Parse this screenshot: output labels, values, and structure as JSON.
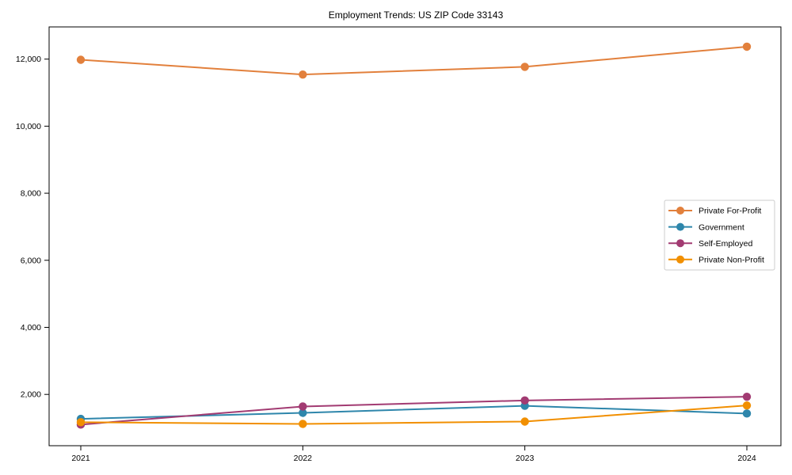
{
  "chart_data": {
    "type": "line",
    "title": "Employment Trends: US ZIP Code 33143",
    "categories": [
      "2021",
      "2022",
      "2023",
      "2024"
    ],
    "series": [
      {
        "name": "Private For-Profit",
        "color": "#E2803C",
        "values": [
          11980,
          11540,
          11770,
          12370
        ]
      },
      {
        "name": "Government",
        "color": "#2E86AB",
        "values": [
          1270,
          1450,
          1660,
          1430
        ]
      },
      {
        "name": "Self-Employed",
        "color": "#A23B72",
        "values": [
          1100,
          1640,
          1820,
          1930
        ]
      },
      {
        "name": "Private Non-Profit",
        "color": "#F18F01",
        "values": [
          1170,
          1120,
          1190,
          1670
        ]
      }
    ],
    "xlabel": "",
    "ylabel": "",
    "ylim": [
      470,
      12960
    ],
    "yticks": [
      2000,
      4000,
      6000,
      8000,
      10000,
      12000
    ],
    "ytick_labels": [
      "2,000",
      "4,000",
      "6,000",
      "8,000",
      "10,000",
      "12,000"
    ],
    "grid": false,
    "marker": "circle",
    "legend_position": "center right",
    "colors": {
      "spine": "#000000",
      "legend_border": "#cccccc",
      "background": "#ffffff"
    }
  }
}
